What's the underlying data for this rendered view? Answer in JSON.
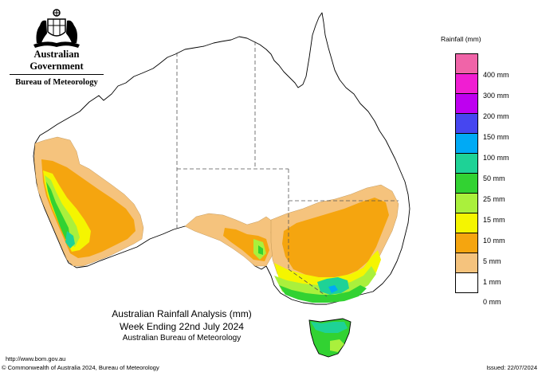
{
  "header": {
    "government": "Australian Government",
    "bureau": "Bureau of Meteorology"
  },
  "legend": {
    "title": "Rainfall (mm)",
    "items": [
      {
        "label": "",
        "color": "#f064a8"
      },
      {
        "label": "400 mm",
        "color": "#f01ed2"
      },
      {
        "label": "300 mm",
        "color": "#be00f0"
      },
      {
        "label": "200 mm",
        "color": "#4646f0"
      },
      {
        "label": "150 mm",
        "color": "#00aaf5"
      },
      {
        "label": "100 mm",
        "color": "#1ed296"
      },
      {
        "label": "50 mm",
        "color": "#32d232"
      },
      {
        "label": "25 mm",
        "color": "#aaf03c"
      },
      {
        "label": "15 mm",
        "color": "#f5f500"
      },
      {
        "label": "10 mm",
        "color": "#f5a50f"
      },
      {
        "label": "5 mm",
        "color": "#f5c37d"
      },
      {
        "label": "1 mm",
        "color": "#ffffff"
      },
      {
        "label": "0 mm",
        "color": ""
      }
    ]
  },
  "title": {
    "line1": "Australian Rainfall Analysis (mm)",
    "line2": "Week Ending 22nd July 2024",
    "line3": "Australian Bureau of Meteorology"
  },
  "footer": {
    "url": "http://www.bom.gov.au",
    "copyright": "© Commonwealth of Australia 2024, Bureau of Meteorology",
    "issued": "Issued: 22/07/2024"
  }
}
